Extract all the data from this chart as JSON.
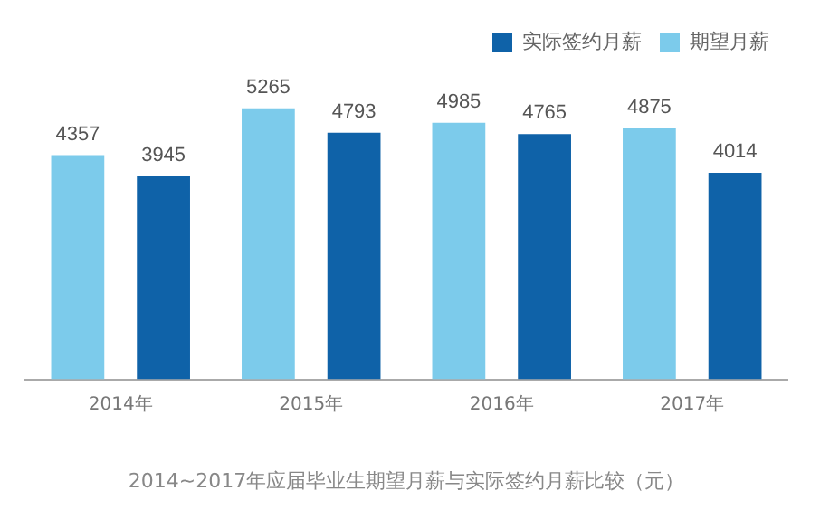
{
  "chart_data": {
    "type": "bar",
    "title": "2014~2017年应届毕业生期望月薪与实际签约月薪比较（元）",
    "categories": [
      "2014年",
      "2015年",
      "2016年",
      "2017年"
    ],
    "series": [
      {
        "name": "期望月薪",
        "color": "#7ccbeb",
        "values": [
          4357,
          5265,
          4985,
          4875
        ]
      },
      {
        "name": "实际签约月薪",
        "color": "#0f62a8",
        "values": [
          3945,
          4793,
          4765,
          4014
        ]
      }
    ],
    "tick_labels": "x",
    "data_labels": true,
    "legend": "top right",
    "grid": false
  }
}
